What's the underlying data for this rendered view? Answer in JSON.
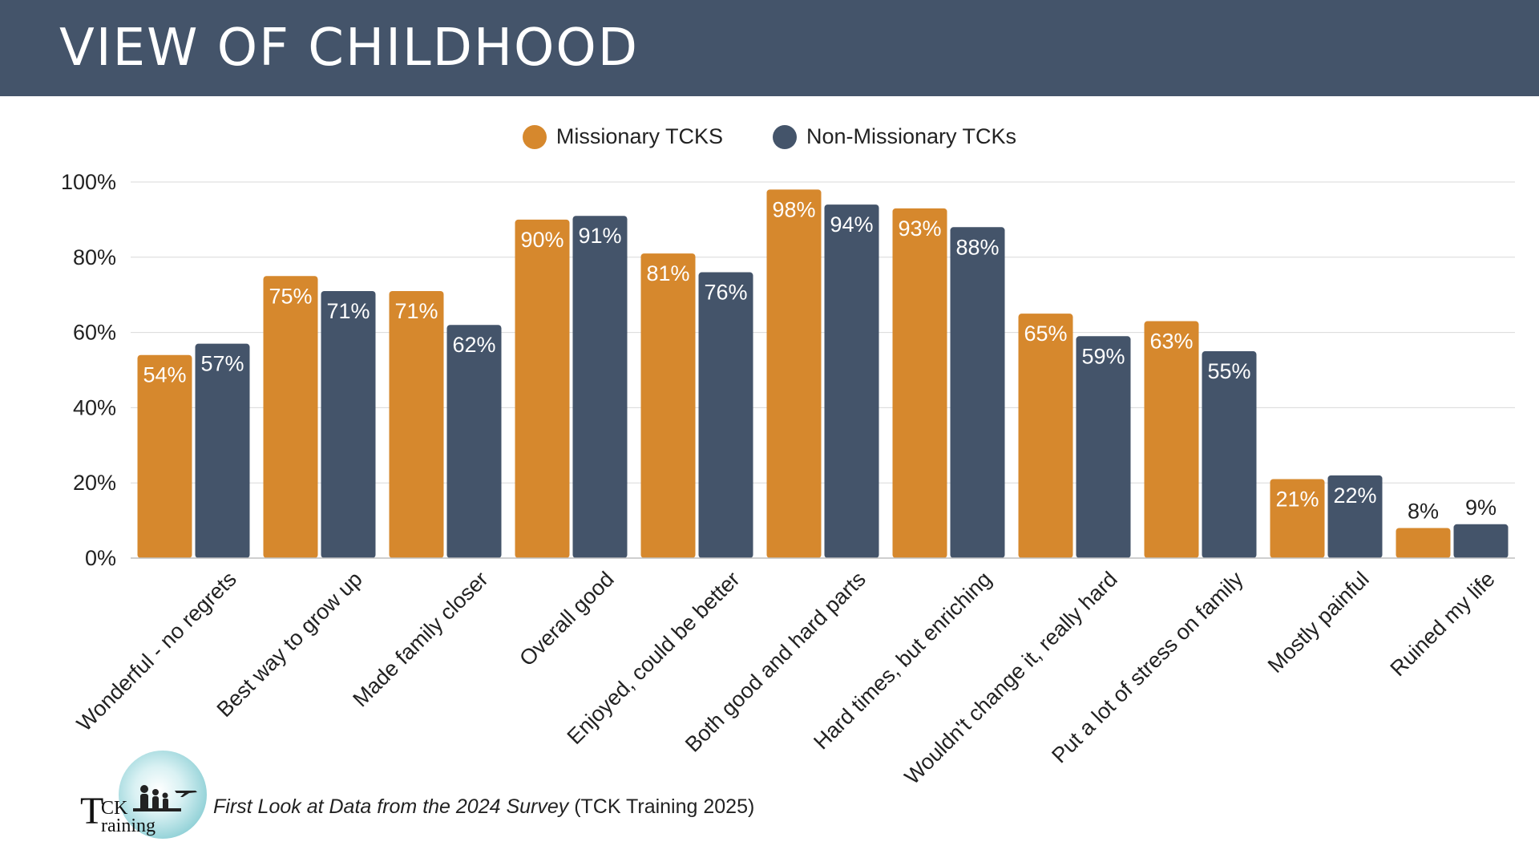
{
  "header": {
    "title": "VIEW OF CHILDHOOD"
  },
  "colors": {
    "header_bg": "#44546a",
    "missionary": "#d6882d",
    "non_missionary": "#44546a"
  },
  "legend": {
    "items": [
      {
        "label": "Missionary TCKS",
        "color": "#d6882d"
      },
      {
        "label": "Non-Missionary TCKs",
        "color": "#44546a"
      }
    ]
  },
  "chart_data": {
    "type": "bar",
    "title": "",
    "xlabel": "",
    "ylabel": "",
    "ylim": [
      0,
      100
    ],
    "yticks": [
      "0%",
      "20%",
      "40%",
      "60%",
      "80%",
      "100%"
    ],
    "grid": true,
    "legend_position": "top-center",
    "categories": [
      "Wonderful - no regrets",
      "Best way to grow up",
      "Made family closer",
      "Overall good",
      "Enjoyed, could be better",
      "Both good and hard parts",
      "Hard times, but enriching",
      "Wouldn't change it, really hard",
      "Put a lot of stress on family",
      "Mostly painful",
      "Ruined my life"
    ],
    "series": [
      {
        "name": "Missionary TCKS",
        "color": "#d6882d",
        "values": [
          54,
          75,
          71,
          90,
          81,
          98,
          93,
          65,
          63,
          21,
          8
        ]
      },
      {
        "name": "Non-Missionary TCKs",
        "color": "#44546a",
        "values": [
          57,
          71,
          62,
          91,
          76,
          94,
          88,
          59,
          55,
          22,
          9
        ]
      }
    ]
  },
  "footer": {
    "logo_text_t": "T",
    "logo_text_ck": "CK",
    "logo_text_raining": "raining",
    "caption_italic": "First Look at Data from the 2024 Survey",
    "caption_plain": " (TCK Training 2025)"
  }
}
